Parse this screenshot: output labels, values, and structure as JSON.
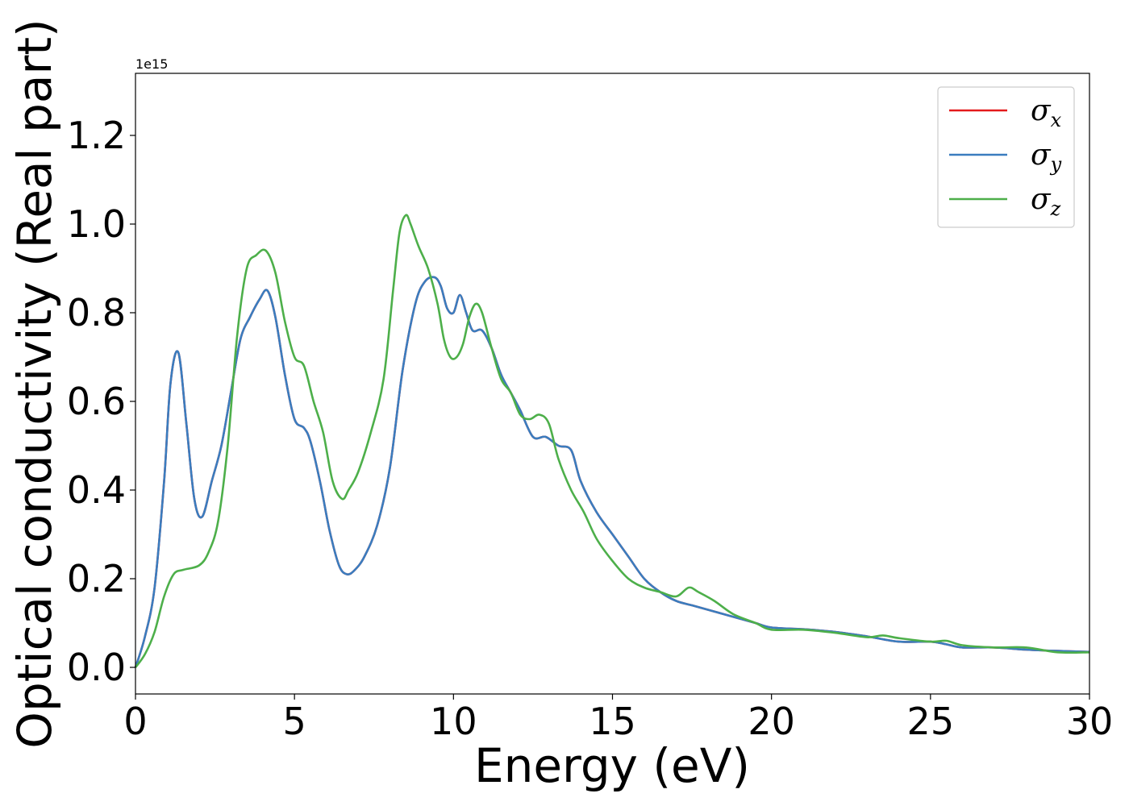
{
  "chart_data": {
    "type": "line",
    "title": "",
    "xlabel": "Energy (eV)",
    "ylabel": "Optical conductivity (Real part)",
    "y_offset_label": "1e15",
    "xlim": [
      0,
      30
    ],
    "ylim": [
      -0.06,
      1.34
    ],
    "x_ticks": [
      0,
      5,
      10,
      15,
      20,
      25,
      30
    ],
    "x_tick_labels": [
      "0",
      "5",
      "10",
      "15",
      "20",
      "25",
      "30"
    ],
    "y_ticks": [
      0.0,
      0.2,
      0.4,
      0.6,
      0.8,
      1.0,
      1.2
    ],
    "y_tick_labels": [
      "0.0",
      "0.2",
      "0.4",
      "0.6",
      "0.8",
      "1.0",
      "1.2"
    ],
    "grid": false,
    "legend_position": "top-right",
    "series": [
      {
        "name": "σx",
        "legend_symbol": "σ",
        "legend_subscript": "x",
        "color": "#e41a1c",
        "x": [
          0,
          0.3,
          0.6,
          0.9,
          1.1,
          1.35,
          1.6,
          1.85,
          2.1,
          2.4,
          2.7,
          3.0,
          3.3,
          3.6,
          3.9,
          4.15,
          4.4,
          4.7,
          5.0,
          5.3,
          5.5,
          5.8,
          6.1,
          6.4,
          6.65,
          6.9,
          7.2,
          7.6,
          8.0,
          8.4,
          8.8,
          9.1,
          9.4,
          9.6,
          9.8,
          10.0,
          10.2,
          10.4,
          10.6,
          10.9,
          11.2,
          11.5,
          11.8,
          12.1,
          12.5,
          12.9,
          13.3,
          13.7,
          14.0,
          14.5,
          15.0,
          15.5,
          16.0,
          16.5,
          17.0,
          17.5,
          18.0,
          18.5,
          19.0,
          19.5,
          20.0,
          21.0,
          22.0,
          23.0,
          24.0,
          25.0,
          25.5,
          26.0,
          27.0,
          28.0,
          29.0,
          30.0
        ],
        "y": [
          0.0,
          0.07,
          0.18,
          0.42,
          0.64,
          0.71,
          0.55,
          0.38,
          0.34,
          0.42,
          0.5,
          0.62,
          0.74,
          0.79,
          0.83,
          0.85,
          0.79,
          0.66,
          0.56,
          0.54,
          0.51,
          0.42,
          0.31,
          0.23,
          0.21,
          0.22,
          0.25,
          0.32,
          0.45,
          0.67,
          0.82,
          0.87,
          0.88,
          0.86,
          0.81,
          0.8,
          0.84,
          0.8,
          0.76,
          0.76,
          0.72,
          0.66,
          0.62,
          0.58,
          0.52,
          0.52,
          0.5,
          0.49,
          0.42,
          0.35,
          0.3,
          0.25,
          0.2,
          0.17,
          0.15,
          0.14,
          0.13,
          0.12,
          0.11,
          0.1,
          0.09,
          0.086,
          0.08,
          0.07,
          0.058,
          0.058,
          0.052,
          0.045,
          0.045,
          0.04,
          0.037,
          0.035
        ]
      },
      {
        "name": "σy",
        "legend_symbol": "σ",
        "legend_subscript": "y",
        "color": "#3a7dbf",
        "x": [
          0,
          0.3,
          0.6,
          0.9,
          1.1,
          1.35,
          1.6,
          1.85,
          2.1,
          2.4,
          2.7,
          3.0,
          3.3,
          3.6,
          3.9,
          4.15,
          4.4,
          4.7,
          5.0,
          5.3,
          5.5,
          5.8,
          6.1,
          6.4,
          6.65,
          6.9,
          7.2,
          7.6,
          8.0,
          8.4,
          8.8,
          9.1,
          9.4,
          9.6,
          9.8,
          10.0,
          10.2,
          10.4,
          10.6,
          10.9,
          11.2,
          11.5,
          11.8,
          12.1,
          12.5,
          12.9,
          13.3,
          13.7,
          14.0,
          14.5,
          15.0,
          15.5,
          16.0,
          16.5,
          17.0,
          17.5,
          18.0,
          18.5,
          19.0,
          19.5,
          20.0,
          21.0,
          22.0,
          23.0,
          24.0,
          25.0,
          25.5,
          26.0,
          27.0,
          28.0,
          29.0,
          30.0
        ],
        "y": [
          0.0,
          0.07,
          0.18,
          0.42,
          0.64,
          0.71,
          0.55,
          0.38,
          0.34,
          0.42,
          0.5,
          0.62,
          0.74,
          0.79,
          0.83,
          0.85,
          0.79,
          0.66,
          0.56,
          0.54,
          0.51,
          0.42,
          0.31,
          0.23,
          0.21,
          0.22,
          0.25,
          0.32,
          0.45,
          0.67,
          0.82,
          0.87,
          0.88,
          0.86,
          0.81,
          0.8,
          0.84,
          0.8,
          0.76,
          0.76,
          0.72,
          0.66,
          0.62,
          0.58,
          0.52,
          0.52,
          0.5,
          0.49,
          0.42,
          0.35,
          0.3,
          0.25,
          0.2,
          0.17,
          0.15,
          0.14,
          0.13,
          0.12,
          0.11,
          0.1,
          0.09,
          0.086,
          0.08,
          0.07,
          0.058,
          0.058,
          0.052,
          0.045,
          0.045,
          0.04,
          0.037,
          0.035
        ]
      },
      {
        "name": "σz",
        "legend_symbol": "σ",
        "legend_subscript": "z",
        "color": "#4daf4a",
        "x": [
          0,
          0.3,
          0.6,
          0.9,
          1.2,
          1.5,
          2.0,
          2.3,
          2.6,
          2.9,
          3.2,
          3.5,
          3.8,
          4.1,
          4.4,
          4.7,
          5.0,
          5.3,
          5.6,
          5.9,
          6.2,
          6.5,
          6.7,
          7.0,
          7.4,
          7.8,
          8.1,
          8.3,
          8.5,
          8.65,
          8.9,
          9.2,
          9.5,
          9.7,
          9.9,
          10.1,
          10.3,
          10.5,
          10.7,
          10.9,
          11.2,
          11.5,
          11.8,
          12.1,
          12.4,
          12.7,
          13.0,
          13.3,
          13.7,
          14.1,
          14.5,
          15.0,
          15.5,
          16.0,
          16.5,
          17.0,
          17.4,
          17.7,
          18.2,
          18.8,
          19.5,
          20.0,
          21.0,
          22.0,
          23.0,
          23.5,
          24.0,
          25.0,
          25.5,
          26.0,
          27.0,
          28.0,
          29.0,
          30.0
        ],
        "y": [
          0.0,
          0.03,
          0.08,
          0.16,
          0.21,
          0.22,
          0.23,
          0.26,
          0.33,
          0.5,
          0.75,
          0.9,
          0.93,
          0.94,
          0.89,
          0.78,
          0.7,
          0.68,
          0.6,
          0.53,
          0.42,
          0.38,
          0.4,
          0.44,
          0.53,
          0.65,
          0.85,
          0.98,
          1.02,
          1.0,
          0.95,
          0.9,
          0.82,
          0.74,
          0.7,
          0.7,
          0.73,
          0.79,
          0.82,
          0.8,
          0.72,
          0.65,
          0.62,
          0.57,
          0.56,
          0.57,
          0.55,
          0.47,
          0.4,
          0.35,
          0.29,
          0.24,
          0.2,
          0.18,
          0.17,
          0.16,
          0.18,
          0.17,
          0.15,
          0.12,
          0.1,
          0.085,
          0.085,
          0.078,
          0.068,
          0.072,
          0.066,
          0.058,
          0.06,
          0.05,
          0.045,
          0.045,
          0.034,
          0.034
        ]
      }
    ]
  }
}
